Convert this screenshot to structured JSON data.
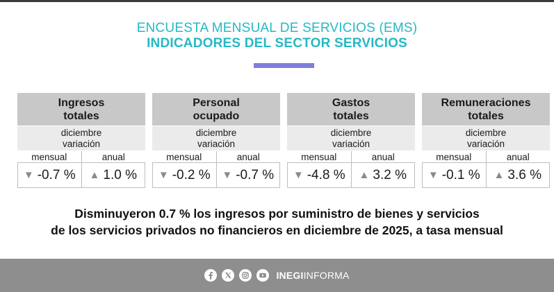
{
  "header": {
    "title_line1": "ENCUESTA MENSUAL DE SERVICIOS (EMS)",
    "title_line2": "INDICADORES DEL SECTOR SERVICIOS",
    "title_color": "#25b8c6",
    "accent_color": "#7f7ddc"
  },
  "indicators": [
    {
      "name_line1": "Ingresos",
      "name_line2": "totales",
      "period": "diciembre",
      "label": "variación",
      "col_monthly": "mensual",
      "col_annual": "anual",
      "monthly_arrow": "▼",
      "monthly_value": "-0.7 %",
      "annual_arrow": "▲",
      "annual_value": "1.0 %"
    },
    {
      "name_line1": "Personal",
      "name_line2": "ocupado",
      "period": "diciembre",
      "label": "variación",
      "col_monthly": "mensual",
      "col_annual": "anual",
      "monthly_arrow": "▼",
      "monthly_value": "-0.2 %",
      "annual_arrow": "▼",
      "annual_value": "-0.7 %"
    },
    {
      "name_line1": "Gastos",
      "name_line2": "totales",
      "period": "diciembre",
      "label": "variación",
      "col_monthly": "mensual",
      "col_annual": "anual",
      "monthly_arrow": "▼",
      "monthly_value": "-4.8 %",
      "annual_arrow": "▲",
      "annual_value": "3.2 %"
    },
    {
      "name_line1": "Remuneraciones",
      "name_line2": "totales",
      "period": "diciembre",
      "label": "variación",
      "col_monthly": "mensual",
      "col_annual": "anual",
      "monthly_arrow": "▼",
      "monthly_value": "-0.1 %",
      "annual_arrow": "▲",
      "annual_value": "3.6 %"
    }
  ],
  "summary": {
    "line1": "Disminuyeron 0.7 % los ingresos por suministro de bienes y servicios",
    "line2": "de los servicios privados no financieros en diciembre de 2025, a tasa mensual"
  },
  "footer": {
    "brand_bold": "INEGI",
    "brand_light": "INFORMA",
    "icons": [
      "facebook-icon",
      "x-icon",
      "instagram-icon",
      "youtube-icon"
    ],
    "background_color": "#8e8e8e"
  }
}
